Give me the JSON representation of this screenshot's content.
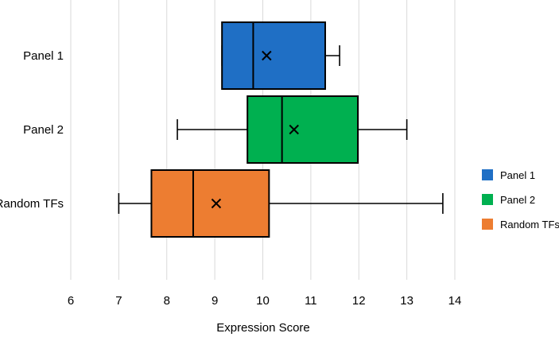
{
  "chart_data": {
    "type": "boxplot",
    "orientation": "horizontal",
    "xlabel": "Expression Score",
    "xlim": [
      6,
      14
    ],
    "xticks": [
      6,
      7,
      8,
      9,
      10,
      11,
      12,
      13,
      14
    ],
    "grid": true,
    "legend_position": "right",
    "series": [
      {
        "name": "Panel 1",
        "color": "#1f6fc5",
        "min": 9.15,
        "q1": 9.15,
        "median": 9.8,
        "q3": 11.3,
        "max": 11.6,
        "mean": 10.08
      },
      {
        "name": "Panel 2",
        "color": "#00b050",
        "min": 8.22,
        "q1": 9.68,
        "median": 10.4,
        "q3": 11.98,
        "max": 13.0,
        "mean": 10.65
      },
      {
        "name": "Random TFs",
        "color": "#ed7d31",
        "min": 7.0,
        "q1": 7.68,
        "median": 8.55,
        "q3": 10.13,
        "max": 13.75,
        "mean": 9.03
      }
    ]
  }
}
